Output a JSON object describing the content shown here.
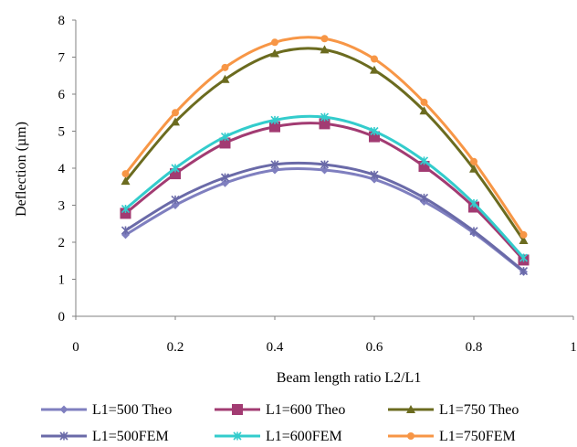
{
  "chart_data": {
    "type": "line",
    "title": "",
    "xlabel": "Beam length ratio  L2/L1",
    "ylabel": "Deflection  (µm)",
    "xlim": [
      0,
      1
    ],
    "ylim": [
      0,
      8
    ],
    "xticks": [
      "0",
      "0.2",
      "0.4",
      "0.6",
      "0.8",
      "1"
    ],
    "yticks": [
      "0",
      "1",
      "2",
      "3",
      "4",
      "5",
      "6",
      "7",
      "8"
    ],
    "grid": false,
    "legend_position": "bottom",
    "x": [
      0.1,
      0.2,
      0.3,
      0.4,
      0.5,
      0.6,
      0.7,
      0.8,
      0.9
    ],
    "series": [
      {
        "name": "L1=500 Theo",
        "color": "#7f7fbf",
        "marker": "diamond",
        "values": [
          2.2,
          3.0,
          3.6,
          3.95,
          3.95,
          3.7,
          3.1,
          2.25,
          1.2
        ]
      },
      {
        "name": "L1=600 Theo",
        "color": "#a23b72",
        "marker": "square",
        "values": [
          2.78,
          3.85,
          4.68,
          5.12,
          5.2,
          4.85,
          4.05,
          2.95,
          1.52
        ]
      },
      {
        "name": "L1=750 Theo",
        "color": "#6b6b1f",
        "marker": "triangle",
        "values": [
          3.65,
          5.25,
          6.4,
          7.1,
          7.2,
          6.65,
          5.55,
          3.98,
          2.05
        ]
      },
      {
        "name": "L1=500FEM",
        "color": "#6a6aa8",
        "marker": "star",
        "values": [
          2.32,
          3.15,
          3.75,
          4.1,
          4.1,
          3.82,
          3.2,
          2.3,
          1.22
        ]
      },
      {
        "name": "L1=600FEM",
        "color": "#33cccc",
        "marker": "star",
        "values": [
          2.9,
          4.0,
          4.85,
          5.3,
          5.38,
          5.0,
          4.2,
          3.05,
          1.58
        ]
      },
      {
        "name": "L1=750FEM",
        "color": "#f79646",
        "marker": "circle",
        "values": [
          3.85,
          5.5,
          6.72,
          7.4,
          7.5,
          6.95,
          5.78,
          4.18,
          2.2
        ]
      }
    ]
  }
}
